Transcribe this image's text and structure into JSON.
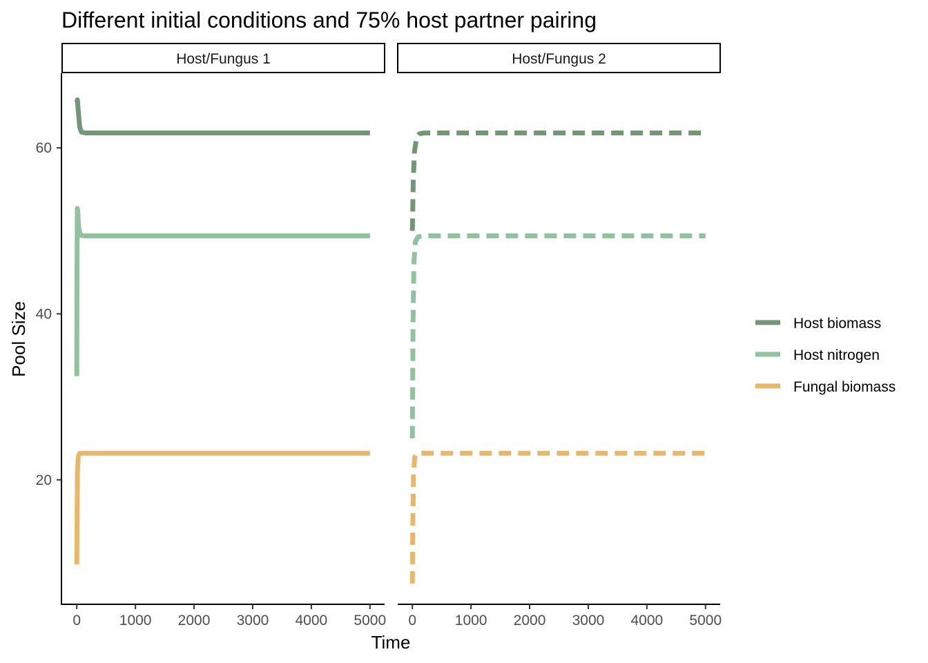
{
  "chart_data": {
    "type": "line",
    "title": "Different initial conditions and 75% host partner pairing",
    "xlabel": "Time",
    "ylabel": "Pool Size",
    "xlim": [
      -250,
      5250
    ],
    "ylim": [
      5,
      69
    ],
    "x_ticks": [
      0,
      1000,
      2000,
      3000,
      4000,
      5000
    ],
    "y_ticks": [
      20,
      40,
      60
    ],
    "grid": false,
    "legend_position": "right",
    "facets": [
      {
        "label": "Host/Fungus 1",
        "line_style": "solid",
        "series": [
          {
            "name": "Host biomass",
            "points": [
              [
                0,
                65.5
              ],
              [
                10,
                65.8
              ],
              [
                25,
                64.5
              ],
              [
                50,
                62.5
              ],
              [
                80,
                61.9
              ],
              [
                150,
                61.8
              ],
              [
                5000,
                61.8
              ]
            ]
          },
          {
            "name": "Host nitrogen",
            "points": [
              [
                0,
                32.5
              ],
              [
                3,
                45
              ],
              [
                8,
                52.7
              ],
              [
                15,
                52.5
              ],
              [
                30,
                50.5
              ],
              [
                60,
                49.5
              ],
              [
                120,
                49.4
              ],
              [
                5000,
                49.4
              ]
            ]
          },
          {
            "name": "Fungal biomass",
            "points": [
              [
                0,
                9.8
              ],
              [
                5,
                16
              ],
              [
                12,
                21
              ],
              [
                25,
                22.8
              ],
              [
                50,
                23.2
              ],
              [
                100,
                23.2
              ],
              [
                5000,
                23.2
              ]
            ]
          }
        ]
      },
      {
        "label": "Host/Fungus 2",
        "line_style": "dashed",
        "series": [
          {
            "name": "Host biomass",
            "points": [
              [
                0,
                50
              ],
              [
                15,
                56
              ],
              [
                35,
                59.5
              ],
              [
                70,
                61.2
              ],
              [
                120,
                61.7
              ],
              [
                200,
                61.8
              ],
              [
                5000,
                61.8
              ]
            ]
          },
          {
            "name": "Host nitrogen",
            "points": [
              [
                0,
                25
              ],
              [
                10,
                38
              ],
              [
                25,
                46
              ],
              [
                50,
                48.7
              ],
              [
                100,
                49.3
              ],
              [
                200,
                49.4
              ],
              [
                5000,
                49.4
              ]
            ]
          },
          {
            "name": "Fungal biomass",
            "points": [
              [
                0,
                7.5
              ],
              [
                8,
                15
              ],
              [
                20,
                20.5
              ],
              [
                40,
                22.7
              ],
              [
                80,
                23.2
              ],
              [
                200,
                23.2
              ],
              [
                5000,
                23.2
              ]
            ]
          }
        ]
      }
    ],
    "legend": [
      {
        "name": "Host biomass",
        "color": "#739675"
      },
      {
        "name": "Host nitrogen",
        "color": "#92c29d"
      },
      {
        "name": "Fungal biomass",
        "color": "#e8b86a"
      }
    ]
  }
}
